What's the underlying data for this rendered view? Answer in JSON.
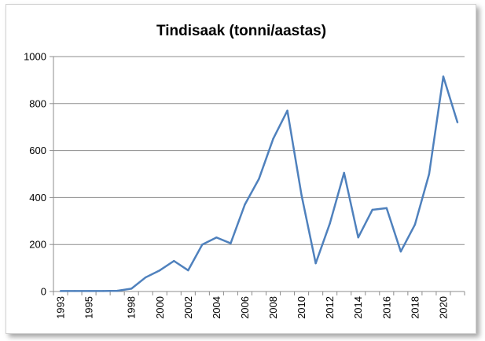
{
  "chart_data": {
    "type": "line",
    "title": "Tindisaak (tonni/aastas)",
    "xlabel": "",
    "ylabel": "",
    "ylim": [
      0,
      1000
    ],
    "yticks": [
      0,
      200,
      400,
      600,
      800,
      1000
    ],
    "xticks": [
      1993,
      1995,
      1998,
      2000,
      2002,
      2004,
      2006,
      2008,
      2010,
      2012,
      2014,
      2016,
      2018,
      2020
    ],
    "grid": "horizontal",
    "legend": "none",
    "series": [
      {
        "color": "#4f81bd",
        "x": [
          1993,
          1994,
          1995,
          1996,
          1997,
          1998,
          1999,
          2000,
          2001,
          2002,
          2003,
          2004,
          2005,
          2006,
          2007,
          2008,
          2009,
          2010,
          2011,
          2012,
          2013,
          2014,
          2015,
          2016,
          2017,
          2018,
          2019,
          2020,
          2021
        ],
        "values": [
          2,
          2,
          2,
          2,
          3,
          12,
          60,
          90,
          130,
          90,
          200,
          230,
          205,
          370,
          480,
          650,
          770,
          410,
          120,
          290,
          505,
          230,
          348,
          355,
          170,
          285,
          500,
          915,
          720
        ]
      }
    ]
  }
}
